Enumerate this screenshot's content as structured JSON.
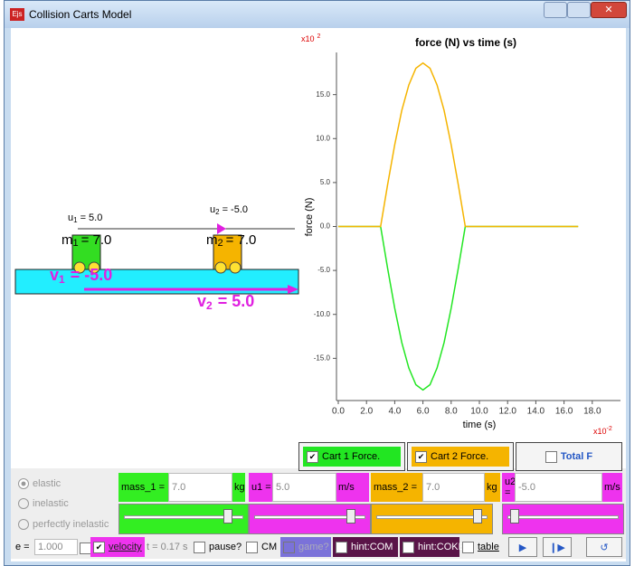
{
  "window": {
    "title": "Collision Carts Model",
    "icon": "Ejs"
  },
  "simulation": {
    "u1": {
      "symbol": "u",
      "sub": "1",
      "value": "= 5.0"
    },
    "u2": {
      "symbol": "u",
      "sub": "2",
      "value": "= -5.0"
    },
    "m1": {
      "symbol": "m",
      "sub": "1",
      "value": "= 7.0"
    },
    "m2": {
      "symbol": "m",
      "sub": "2",
      "value": "= 7.0"
    },
    "v1": {
      "symbol": "v",
      "sub": "1",
      "value": "= -5.0"
    },
    "v2": {
      "symbol": "v",
      "sub": "2",
      "value": "= 5.0"
    }
  },
  "chart_data": {
    "type": "line",
    "title": "force (N) vs time (s)",
    "x_label": "time (s)",
    "y_label": "force (N)",
    "y_exponent": {
      "base": "x10",
      "power": "2"
    },
    "x_exponent": {
      "base": "x10",
      "power": "-2"
    },
    "x": [
      0,
      3,
      3.5,
      4,
      4.5,
      5,
      5.5,
      6,
      6.5,
      7,
      7.5,
      8,
      8.5,
      9,
      17
    ],
    "series": [
      {
        "name": "Cart 1 Force.",
        "color": "#22e622",
        "values": [
          0,
          0,
          -4.8,
          -9.3,
          -13.2,
          -16.1,
          -18.0,
          -18.6,
          -18.0,
          -16.1,
          -13.2,
          -9.3,
          -4.8,
          0,
          0
        ]
      },
      {
        "name": "Cart 2 Force.",
        "color": "#f5b400",
        "values": [
          0,
          0,
          4.8,
          9.3,
          13.2,
          16.1,
          18.0,
          18.6,
          18.0,
          16.1,
          13.2,
          9.3,
          4.8,
          0,
          0
        ]
      }
    ],
    "total_label": "Total F",
    "xlim": [
      0,
      20
    ],
    "ylim": [
      -19.8,
      19.8
    ],
    "xticks": [
      {
        "value": 0,
        "label": "0.0"
      },
      {
        "value": 2,
        "label": "2.0"
      },
      {
        "value": 4,
        "label": "4.0"
      },
      {
        "value": 6,
        "label": "6.0"
      },
      {
        "value": 8,
        "label": "8.0"
      },
      {
        "value": 10,
        "label": "10.0"
      },
      {
        "value": 12,
        "label": "12.0"
      },
      {
        "value": 14,
        "label": "14.0"
      },
      {
        "value": 16,
        "label": "16.0"
      },
      {
        "value": 18,
        "label": "18.0"
      }
    ],
    "yticks": [
      {
        "value": -15,
        "label": "-15.0"
      },
      {
        "value": -10,
        "label": "-10.0"
      },
      {
        "value": -5,
        "label": "-5.0"
      },
      {
        "value": 0,
        "label": "0.0"
      },
      {
        "value": 5,
        "label": "5.0"
      },
      {
        "value": 10,
        "label": "10.0"
      },
      {
        "value": 15,
        "label": "15.0"
      }
    ],
    "grid": false
  },
  "controls": {
    "collision_types": [
      "elastic",
      "inelastic",
      "perfectly inelastic"
    ],
    "fields": [
      {
        "label": "mass_1 =",
        "value": "7.0",
        "unit": "kg"
      },
      {
        "label": "u1 =",
        "value": "5.0",
        "unit": "m/s"
      },
      {
        "label": "mass_2 =",
        "value": "7.0",
        "unit": "kg"
      },
      {
        "label": "u2 =",
        "value": "-5.0",
        "unit": "m/s"
      }
    ],
    "e_label": "e =",
    "e_value": "1.000",
    "velocity": "velocity",
    "time": "t = 0.17 s",
    "pause": "pause?",
    "cm": "CM",
    "game": "game?",
    "hint_com": "hint:COM",
    "hint_coke": "hint:COKE",
    "table": "table"
  }
}
